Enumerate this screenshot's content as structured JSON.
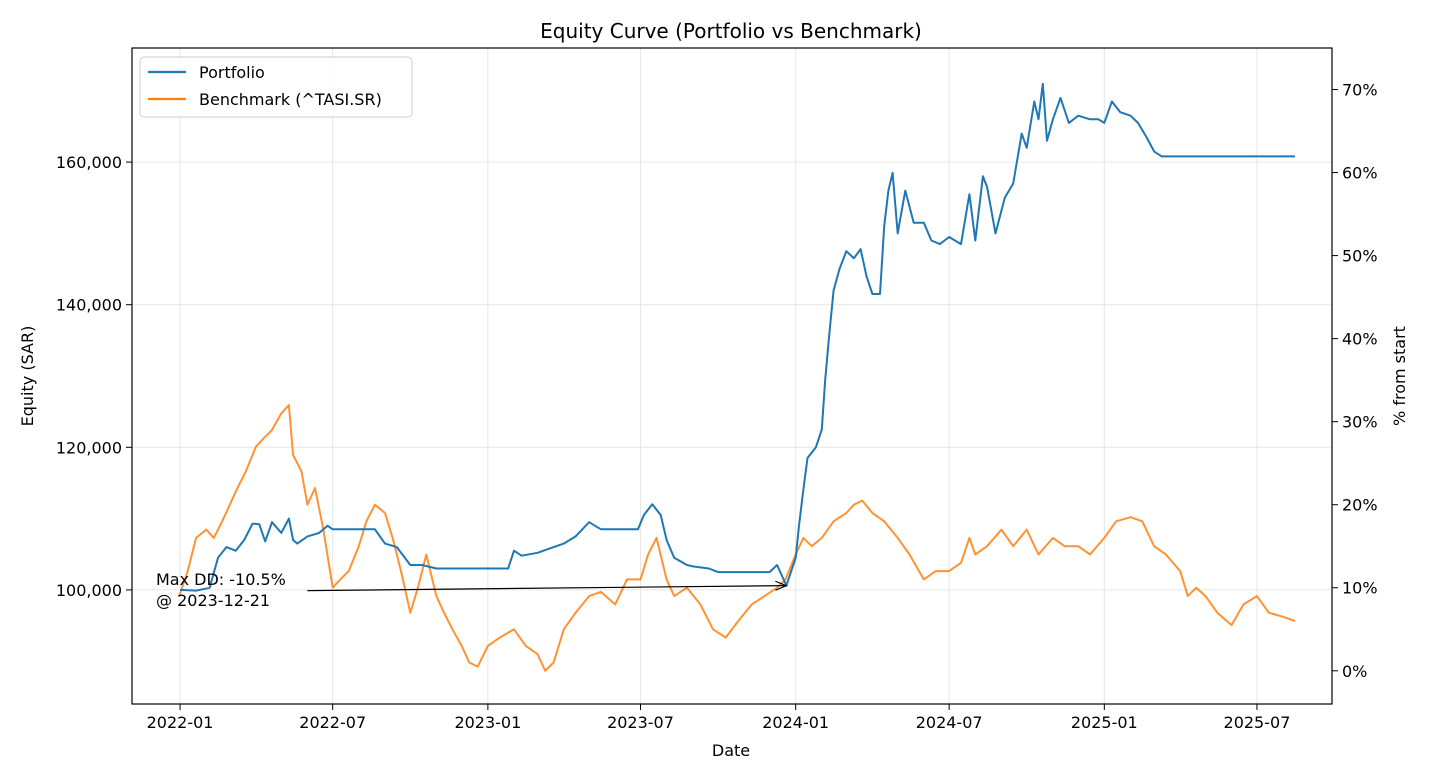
{
  "chart_data": {
    "type": "line",
    "title": "Equity Curve (Portfolio vs Benchmark)",
    "xlabel": "Date",
    "ylabel": "Equity (SAR)",
    "y2label": "% from start",
    "x_ticks": [
      "2022-01",
      "2022-07",
      "2023-01",
      "2023-07",
      "2024-01",
      "2024-07",
      "2025-01",
      "2025-07"
    ],
    "y_ticks": [
      100000,
      120000,
      140000,
      160000
    ],
    "y_tick_labels": [
      "100,000",
      "120,000",
      "140,000",
      "160,000"
    ],
    "y2_ticks": [
      0,
      10,
      20,
      30,
      40,
      50,
      60,
      70
    ],
    "y2_tick_labels": [
      "0%",
      "10%",
      "20%",
      "30%",
      "40%",
      "50%",
      "60%",
      "70%"
    ],
    "xlim": [
      "2021-11-05",
      "2025-09-28"
    ],
    "ylim": [
      84000,
      176000
    ],
    "y2lim": [
      -4,
      75
    ],
    "grid": true,
    "legend_position": "top-left",
    "annotation": {
      "text_line1": "Max DD: -10.5%",
      "text_line2": "@ 2023-12-21",
      "target_date": "2023-12-21",
      "target_value": 100600,
      "arrow_start_date": "2022-06-01",
      "arrow_start_value": 99900
    },
    "series": [
      {
        "name": "Portfolio",
        "color": "#1f77b4",
        "axis": "left",
        "points": [
          [
            "2022-01-01",
            100000
          ],
          [
            "2022-01-20",
            99900
          ],
          [
            "2022-02-05",
            100300
          ],
          [
            "2022-02-15",
            104500
          ],
          [
            "2022-02-25",
            106000
          ],
          [
            "2022-03-08",
            105500
          ],
          [
            "2022-03-18",
            107000
          ],
          [
            "2022-03-28",
            109300
          ],
          [
            "2022-04-05",
            109200
          ],
          [
            "2022-04-12",
            106800
          ],
          [
            "2022-04-20",
            109500
          ],
          [
            "2022-05-01",
            108000
          ],
          [
            "2022-05-10",
            110000
          ],
          [
            "2022-05-15",
            107000
          ],
          [
            "2022-05-20",
            106500
          ],
          [
            "2022-06-01",
            107500
          ],
          [
            "2022-06-15",
            108000
          ],
          [
            "2022-06-25",
            109000
          ],
          [
            "2022-07-01",
            108500
          ],
          [
            "2022-08-01",
            108500
          ],
          [
            "2022-08-20",
            108500
          ],
          [
            "2022-09-01",
            106500
          ],
          [
            "2022-09-15",
            106000
          ],
          [
            "2022-10-01",
            103500
          ],
          [
            "2022-10-15",
            103500
          ],
          [
            "2022-11-01",
            103000
          ],
          [
            "2022-12-01",
            103000
          ],
          [
            "2023-01-01",
            103000
          ],
          [
            "2023-01-25",
            103000
          ],
          [
            "2023-02-01",
            105500
          ],
          [
            "2023-02-10",
            104800
          ],
          [
            "2023-03-01",
            105200
          ],
          [
            "2023-03-15",
            105800
          ],
          [
            "2023-04-01",
            106500
          ],
          [
            "2023-04-15",
            107500
          ],
          [
            "2023-05-01",
            109500
          ],
          [
            "2023-05-15",
            108500
          ],
          [
            "2023-06-01",
            108500
          ],
          [
            "2023-06-28",
            108500
          ],
          [
            "2023-07-05",
            110500
          ],
          [
            "2023-07-15",
            112000
          ],
          [
            "2023-07-25",
            110500
          ],
          [
            "2023-08-01",
            107000
          ],
          [
            "2023-08-10",
            104500
          ],
          [
            "2023-08-25",
            103500
          ],
          [
            "2023-09-01",
            103300
          ],
          [
            "2023-09-20",
            103000
          ],
          [
            "2023-10-01",
            102500
          ],
          [
            "2023-11-01",
            102500
          ],
          [
            "2023-12-01",
            102500
          ],
          [
            "2023-12-10",
            103500
          ],
          [
            "2023-12-21",
            100600
          ],
          [
            "2024-01-01",
            104500
          ],
          [
            "2024-01-05",
            109000
          ],
          [
            "2024-01-10",
            114000
          ],
          [
            "2024-01-15",
            118500
          ],
          [
            "2024-01-25",
            120000
          ],
          [
            "2024-02-01",
            122500
          ],
          [
            "2024-02-05",
            129500
          ],
          [
            "2024-02-10",
            136000
          ],
          [
            "2024-02-15",
            142000
          ],
          [
            "2024-02-22",
            145000
          ],
          [
            "2024-03-01",
            147500
          ],
          [
            "2024-03-10",
            146500
          ],
          [
            "2024-03-18",
            147800
          ],
          [
            "2024-03-25",
            144000
          ],
          [
            "2024-04-01",
            141500
          ],
          [
            "2024-04-10",
            141500
          ],
          [
            "2024-04-15",
            151000
          ],
          [
            "2024-04-20",
            156000
          ],
          [
            "2024-04-25",
            158500
          ],
          [
            "2024-05-01",
            150000
          ],
          [
            "2024-05-10",
            156000
          ],
          [
            "2024-05-20",
            151500
          ],
          [
            "2024-06-01",
            151500
          ],
          [
            "2024-06-10",
            149000
          ],
          [
            "2024-06-20",
            148500
          ],
          [
            "2024-07-01",
            149500
          ],
          [
            "2024-07-15",
            148500
          ],
          [
            "2024-07-25",
            155500
          ],
          [
            "2024-08-01",
            149000
          ],
          [
            "2024-08-10",
            158000
          ],
          [
            "2024-08-15",
            156500
          ],
          [
            "2024-08-25",
            150000
          ],
          [
            "2024-09-05",
            155000
          ],
          [
            "2024-09-15",
            157000
          ],
          [
            "2024-09-25",
            164000
          ],
          [
            "2024-10-01",
            162000
          ],
          [
            "2024-10-10",
            168500
          ],
          [
            "2024-10-15",
            166000
          ],
          [
            "2024-10-20",
            171000
          ],
          [
            "2024-10-25",
            163000
          ],
          [
            "2024-11-01",
            166000
          ],
          [
            "2024-11-10",
            169000
          ],
          [
            "2024-11-20",
            165500
          ],
          [
            "2024-12-01",
            166500
          ],
          [
            "2024-12-15",
            166000
          ],
          [
            "2024-12-25",
            166000
          ],
          [
            "2025-01-01",
            165500
          ],
          [
            "2025-01-10",
            168500
          ],
          [
            "2025-01-20",
            167000
          ],
          [
            "2025-02-01",
            166500
          ],
          [
            "2025-02-10",
            165500
          ],
          [
            "2025-02-20",
            163500
          ],
          [
            "2025-03-01",
            161500
          ],
          [
            "2025-03-10",
            160800
          ],
          [
            "2025-08-15",
            160800
          ]
        ]
      },
      {
        "name": "Benchmark (^TASI.SR)",
        "color": "#ff7f0e",
        "axis": "right",
        "points": [
          [
            "2021-12-31",
            9
          ],
          [
            "2022-01-10",
            12
          ],
          [
            "2022-01-20",
            16
          ],
          [
            "2022-02-01",
            17
          ],
          [
            "2022-02-10",
            16
          ],
          [
            "2022-02-20",
            18
          ],
          [
            "2022-03-01",
            20
          ],
          [
            "2022-03-10",
            22
          ],
          [
            "2022-03-20",
            24
          ],
          [
            "2022-04-01",
            27
          ],
          [
            "2022-04-10",
            28
          ],
          [
            "2022-04-20",
            29
          ],
          [
            "2022-05-01",
            31
          ],
          [
            "2022-05-10",
            32
          ],
          [
            "2022-05-15",
            26
          ],
          [
            "2022-05-25",
            24
          ],
          [
            "2022-06-01",
            20
          ],
          [
            "2022-06-10",
            22
          ],
          [
            "2022-06-20",
            17
          ],
          [
            "2022-07-01",
            10
          ],
          [
            "2022-07-10",
            11
          ],
          [
            "2022-07-20",
            12
          ],
          [
            "2022-08-01",
            15
          ],
          [
            "2022-08-10",
            18
          ],
          [
            "2022-08-20",
            20
          ],
          [
            "2022-09-01",
            19
          ],
          [
            "2022-09-10",
            16
          ],
          [
            "2022-09-20",
            12
          ],
          [
            "2022-10-01",
            7
          ],
          [
            "2022-10-10",
            10
          ],
          [
            "2022-10-20",
            14
          ],
          [
            "2022-11-01",
            9
          ],
          [
            "2022-11-10",
            7
          ],
          [
            "2022-11-20",
            5
          ],
          [
            "2022-12-01",
            3
          ],
          [
            "2022-12-10",
            1
          ],
          [
            "2022-12-20",
            0.5
          ],
          [
            "2023-01-01",
            3
          ],
          [
            "2023-01-15",
            4
          ],
          [
            "2023-02-01",
            5
          ],
          [
            "2023-02-15",
            3
          ],
          [
            "2023-03-01",
            2
          ],
          [
            "2023-03-10",
            0
          ],
          [
            "2023-03-20",
            1
          ],
          [
            "2023-04-01",
            5
          ],
          [
            "2023-04-15",
            7
          ],
          [
            "2023-05-01",
            9
          ],
          [
            "2023-05-15",
            9.5
          ],
          [
            "2023-06-01",
            8
          ],
          [
            "2023-06-15",
            11
          ],
          [
            "2023-07-01",
            11
          ],
          [
            "2023-07-10",
            14
          ],
          [
            "2023-07-20",
            16
          ],
          [
            "2023-08-01",
            11
          ],
          [
            "2023-08-10",
            9
          ],
          [
            "2023-08-25",
            10
          ],
          [
            "2023-09-10",
            8
          ],
          [
            "2023-09-25",
            5
          ],
          [
            "2023-10-10",
            4
          ],
          [
            "2023-10-25",
            6
          ],
          [
            "2023-11-10",
            8
          ],
          [
            "2023-11-25",
            9
          ],
          [
            "2023-12-10",
            10
          ],
          [
            "2023-12-20",
            11
          ],
          [
            "2024-01-01",
            14
          ],
          [
            "2024-01-10",
            16
          ],
          [
            "2024-01-20",
            15
          ],
          [
            "2024-02-01",
            16
          ],
          [
            "2024-02-15",
            18
          ],
          [
            "2024-03-01",
            19
          ],
          [
            "2024-03-10",
            20
          ],
          [
            "2024-03-20",
            20.5
          ],
          [
            "2024-04-01",
            19
          ],
          [
            "2024-04-15",
            18
          ],
          [
            "2024-05-01",
            16
          ],
          [
            "2024-05-15",
            14
          ],
          [
            "2024-06-01",
            11
          ],
          [
            "2024-06-15",
            12
          ],
          [
            "2024-07-01",
            12
          ],
          [
            "2024-07-15",
            13
          ],
          [
            "2024-07-25",
            16
          ],
          [
            "2024-08-01",
            14
          ],
          [
            "2024-08-15",
            15
          ],
          [
            "2024-09-01",
            17
          ],
          [
            "2024-09-15",
            15
          ],
          [
            "2024-10-01",
            17
          ],
          [
            "2024-10-15",
            14
          ],
          [
            "2024-11-01",
            16
          ],
          [
            "2024-11-15",
            15
          ],
          [
            "2024-12-01",
            15
          ],
          [
            "2024-12-15",
            14
          ],
          [
            "2025-01-01",
            16
          ],
          [
            "2025-01-15",
            18
          ],
          [
            "2025-02-01",
            18.5
          ],
          [
            "2025-02-15",
            18
          ],
          [
            "2025-03-01",
            15
          ],
          [
            "2025-03-15",
            14
          ],
          [
            "2025-04-01",
            12
          ],
          [
            "2025-04-10",
            9
          ],
          [
            "2025-04-20",
            10
          ],
          [
            "2025-05-01",
            9
          ],
          [
            "2025-05-15",
            7
          ],
          [
            "2025-06-01",
            5.5
          ],
          [
            "2025-06-15",
            8
          ],
          [
            "2025-07-01",
            9
          ],
          [
            "2025-07-15",
            7
          ],
          [
            "2025-08-01",
            6.5
          ],
          [
            "2025-08-15",
            6
          ]
        ]
      }
    ]
  }
}
